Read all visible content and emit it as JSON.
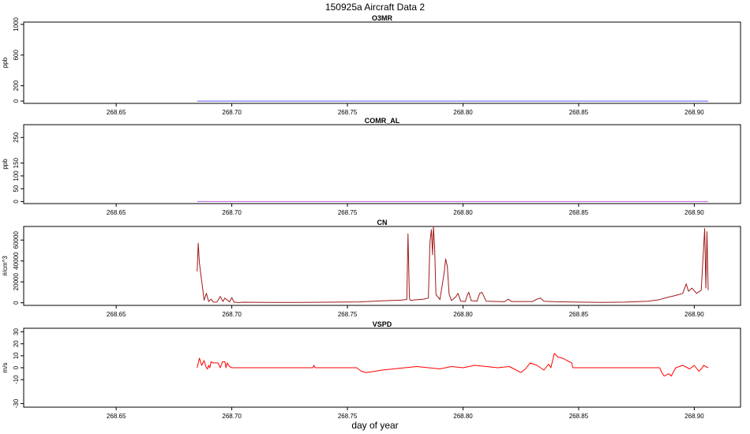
{
  "figure": {
    "title": "150925a   Aircraft Data 2",
    "xlabel": "day of year"
  },
  "chart_data": [
    {
      "type": "line",
      "title": "O3MR",
      "ylabel": "ppb",
      "xlim": [
        268.61,
        268.92
      ],
      "ylim": [
        -30,
        1030
      ],
      "xticks": [
        "268.65",
        "268.70",
        "268.75",
        "268.80",
        "268.85",
        "268.90"
      ],
      "yticks": [
        "0",
        "200",
        "600",
        "1000"
      ],
      "series": [
        {
          "color": "#5a5aff",
          "x": [
            268.685,
            268.906
          ],
          "y": [
            0,
            0
          ]
        }
      ]
    },
    {
      "type": "line",
      "title": "COMR_AL",
      "ylabel": "ppb",
      "xlim": [
        268.61,
        268.92
      ],
      "ylim": [
        -8,
        300
      ],
      "xticks": [
        "268.65",
        "268.70",
        "268.75",
        "268.80",
        "268.85",
        "268.90"
      ],
      "yticks": [
        "0",
        "50",
        "100",
        "150",
        "250"
      ],
      "series": [
        {
          "color": "#c060e0",
          "x": [
            268.685,
            268.906
          ],
          "y": [
            0,
            0
          ]
        }
      ]
    },
    {
      "type": "line",
      "title": "CN",
      "ylabel": "#/cm^3",
      "xlim": [
        268.61,
        268.92
      ],
      "ylim": [
        -2500,
        73000
      ],
      "xticks": [
        "268.65",
        "268.70",
        "268.75",
        "268.80",
        "268.85",
        "268.90"
      ],
      "yticks": [
        "0",
        "20000",
        "40000",
        "60000"
      ],
      "series": [
        {
          "color": "#a01818",
          "x": [
            268.685,
            268.6855,
            268.686,
            268.6868,
            268.6875,
            268.688,
            268.689,
            268.69,
            268.691,
            268.692,
            268.6935,
            268.695,
            268.6962,
            268.697,
            268.699,
            268.7,
            268.701,
            268.702,
            268.703,
            268.705,
            268.715,
            268.73,
            268.745,
            268.755,
            268.765,
            268.773,
            268.7757,
            268.7762,
            268.7768,
            268.777,
            268.7775,
            268.779,
            268.783,
            268.785,
            268.7857,
            268.7863,
            268.7868,
            268.7872,
            268.7877,
            268.7883,
            268.79,
            268.7918,
            268.7925,
            268.7932,
            268.794,
            268.795,
            268.797,
            268.7978,
            268.799,
            268.801,
            268.8018,
            268.8025,
            268.8035,
            268.806,
            268.8072,
            268.8082,
            268.81,
            268.818,
            268.8195,
            268.821,
            268.83,
            268.832,
            268.8335,
            268.835,
            268.84,
            268.845,
            268.85,
            268.86,
            268.87,
            268.88,
            268.885,
            268.888,
            268.892,
            268.895,
            268.8965,
            268.8975,
            268.899,
            268.901,
            268.903,
            268.9045,
            268.905,
            268.9055,
            268.906
          ],
          "y": [
            30000,
            57000,
            38000,
            24000,
            12000,
            2500,
            9000,
            1200,
            3500,
            600,
            600,
            6000,
            1200,
            4500,
            800,
            5000,
            600,
            300,
            200,
            500,
            400,
            400,
            600,
            800,
            1800,
            2500,
            3200,
            66000,
            5000,
            3000,
            2200,
            2800,
            3500,
            4500,
            58000,
            70000,
            46000,
            73000,
            54000,
            8000,
            3000,
            28000,
            42000,
            35000,
            8000,
            2000,
            6000,
            9000,
            1500,
            1200,
            7000,
            10000,
            2000,
            1500,
            9000,
            10000,
            1500,
            1000,
            3500,
            1200,
            1200,
            3500,
            4500,
            1500,
            1000,
            800,
            600,
            400,
            600,
            1500,
            3000,
            5000,
            7000,
            9000,
            18000,
            11000,
            14000,
            9000,
            12000,
            71000,
            14000,
            68000,
            12000
          ]
        }
      ]
    },
    {
      "type": "line",
      "title": "VSPD",
      "ylabel": "m/s",
      "xlim": [
        268.61,
        268.92
      ],
      "ylim": [
        -33,
        33
      ],
      "xticks": [
        "268.65",
        "268.70",
        "268.75",
        "268.80",
        "268.85",
        "268.90"
      ],
      "yticks": [
        "-30",
        "-10",
        "0",
        "10",
        "20",
        "30"
      ],
      "series": [
        {
          "color": "#ff0000",
          "x": [
            268.685,
            268.686,
            268.687,
            268.688,
            268.689,
            268.6895,
            268.69,
            268.6905,
            268.691,
            268.692,
            268.6925,
            268.694,
            268.695,
            268.696,
            268.697,
            268.6975,
            268.698,
            268.699,
            268.7,
            268.72,
            268.735,
            268.7355,
            268.736,
            268.754,
            268.756,
            268.758,
            268.762,
            268.765,
            268.77,
            268.775,
            268.78,
            268.785,
            268.79,
            268.795,
            268.8,
            268.805,
            268.81,
            268.815,
            268.82,
            268.822,
            268.825,
            268.827,
            268.829,
            268.832,
            268.835,
            268.837,
            268.838,
            268.8395,
            268.841,
            268.843,
            268.845,
            268.847,
            268.8475,
            268.86,
            268.88,
            268.885,
            268.886,
            268.887,
            268.889,
            268.89,
            268.892,
            268.895,
            268.898,
            268.9,
            268.902,
            268.9035,
            268.904,
            268.906
          ],
          "y": [
            0,
            8,
            2,
            6,
            0,
            -1,
            2,
            0,
            5,
            4,
            4,
            4,
            0,
            5,
            5,
            0,
            4,
            1,
            0,
            0,
            0,
            2,
            0,
            0,
            -3,
            -4,
            -3,
            -2,
            -1,
            0,
            1,
            0,
            -1,
            1,
            0,
            2,
            1,
            0,
            1,
            -1,
            -4,
            -1,
            4,
            2,
            -2,
            3,
            0,
            12,
            9,
            8,
            6,
            4,
            0,
            0,
            0,
            0,
            -4,
            -7,
            -5,
            -7,
            0,
            2,
            -1,
            2,
            -3,
            0,
            2,
            0
          ]
        }
      ]
    }
  ]
}
